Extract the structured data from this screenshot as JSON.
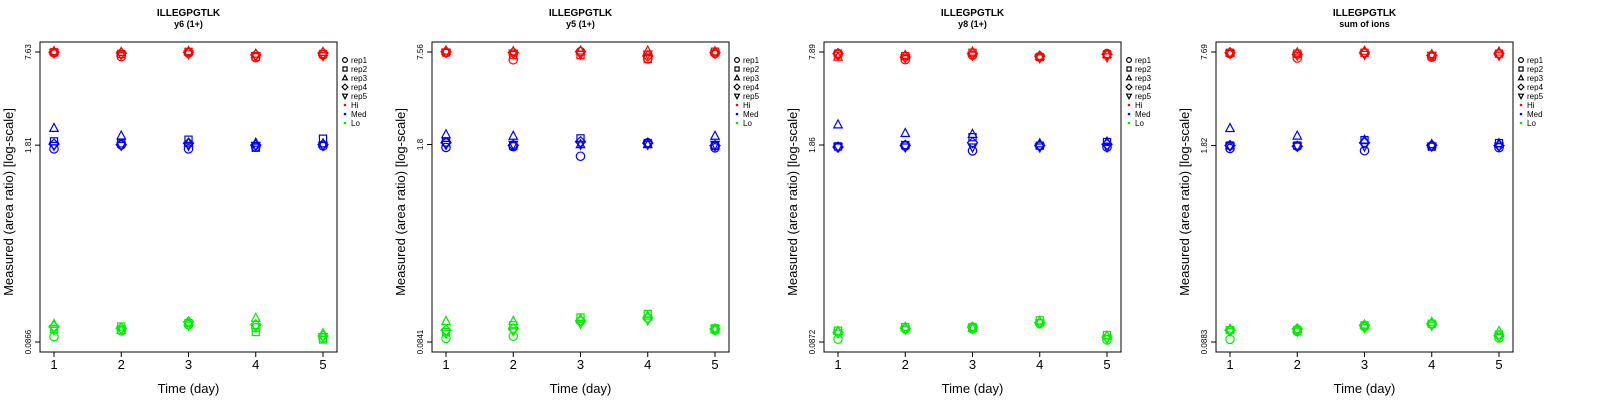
{
  "chart_data": [
    {
      "type": "scatter",
      "title": "ILLEGPGTLK",
      "subtitle": "y6 (1+)",
      "xlabel": "Time (day)",
      "ylabel": "Measured (area ratio) [log-scale]",
      "y_scale": "log",
      "ylim": [
        0.0866,
        7.63
      ],
      "yticks": [
        "0.0866",
        "1.81",
        "7.63"
      ],
      "xticks": [
        "1",
        "2",
        "3",
        "4",
        "5"
      ],
      "x": [
        1,
        2,
        3,
        4,
        5
      ],
      "series": [
        {
          "name": "Hi",
          "color": "#ff0000",
          "reps": [
            [
              7.55,
              7.1,
              7.5,
              7.0,
              7.3
            ],
            [
              7.6,
              7.4,
              7.65,
              7.1,
              7.4
            ],
            [
              7.7,
              7.6,
              7.7,
              7.4,
              7.6
            ],
            [
              7.6,
              7.5,
              7.6,
              7.3,
              7.5
            ],
            [
              7.5,
              7.3,
              7.4,
              7.2,
              7.2
            ]
          ]
        },
        {
          "name": "Med",
          "color": "#0000ff",
          "reps": [
            [
              1.71,
              1.82,
              1.71,
              1.76,
              1.79
            ],
            [
              1.92,
              1.86,
              1.97,
              1.74,
              2.0
            ],
            [
              2.35,
              2.09,
              1.87,
              1.87,
              1.85
            ],
            [
              1.84,
              1.82,
              1.86,
              1.81,
              1.83
            ],
            [
              1.8,
              1.8,
              1.8,
              1.8,
              1.8
            ]
          ]
        },
        {
          "name": "Lo",
          "color": "#00ee00",
          "reps": [
            [
              0.094,
              0.103,
              0.113,
              0.108,
              0.092
            ],
            [
              0.106,
              0.11,
              0.116,
              0.101,
              0.09
            ],
            [
              0.114,
              0.104,
              0.118,
              0.125,
              0.099
            ],
            [
              0.11,
              0.107,
              0.118,
              0.113,
              0.095
            ],
            [
              0.104,
              0.105,
              0.112,
              0.109,
              0.094
            ]
          ]
        }
      ],
      "legend": [
        "rep1",
        "rep2",
        "rep3",
        "rep4",
        "rep5",
        "Hi",
        "Med",
        "Lo"
      ],
      "legend_placement": "right"
    },
    {
      "type": "scatter",
      "title": "ILLEGPGTLK",
      "subtitle": "y5 (1+)",
      "xlabel": "Time (day)",
      "ylabel": "Measured (area ratio) [log-scale]",
      "y_scale": "log",
      "ylim": [
        0.0841,
        7.56
      ],
      "yticks": [
        "0.0841",
        "1.8",
        "7.56"
      ],
      "xticks": [
        "1",
        "2",
        "3",
        "4",
        "5"
      ],
      "x": [
        1,
        2,
        3,
        4,
        5
      ],
      "series": [
        {
          "name": "Hi",
          "color": "#ff0000",
          "reps": [
            [
              7.5,
              6.7,
              7.6,
              6.8,
              7.4
            ],
            [
              7.5,
              7.2,
              7.2,
              6.8,
              7.6
            ],
            [
              7.7,
              7.6,
              7.7,
              7.7,
              7.6
            ],
            [
              7.6,
              7.5,
              7.6,
              7.1,
              7.5
            ],
            [
              7.5,
              7.4,
              7.3,
              7.3,
              7.4
            ]
          ]
        },
        {
          "name": "Med",
          "color": "#0000ff",
          "reps": [
            [
              1.72,
              1.74,
              1.5,
              1.85,
              1.71
            ],
            [
              1.86,
              1.76,
              1.98,
              1.84,
              1.76
            ],
            [
              2.1,
              2.05,
              1.8,
              1.8,
              2.05
            ],
            [
              1.85,
              1.78,
              1.88,
              1.84,
              1.77
            ],
            [
              1.8,
              1.8,
              1.8,
              1.8,
              1.8
            ]
          ]
        },
        {
          "name": "Lo",
          "color": "#00ee00",
          "reps": [
            [
              0.089,
              0.092,
              0.116,
              0.122,
              0.101
            ],
            [
              0.098,
              0.109,
              0.123,
              0.13,
              0.104
            ],
            [
              0.116,
              0.116,
              0.12,
              0.126,
              0.102
            ],
            [
              0.101,
              0.103,
              0.117,
              0.122,
              0.103
            ],
            [
              0.096,
              0.1,
              0.112,
              0.118,
              0.103
            ]
          ]
        }
      ],
      "legend": [
        "rep1",
        "rep2",
        "rep3",
        "rep4",
        "rep5",
        "Hi",
        "Med",
        "Lo"
      ],
      "legend_placement": "right"
    },
    {
      "type": "scatter",
      "title": "ILLEGPGTLK",
      "subtitle": "y8 (1+)",
      "xlabel": "Time (day)",
      "ylabel": "Measured (area ratio) [log-scale]",
      "y_scale": "log",
      "ylim": [
        0.0872,
        7.89
      ],
      "yticks": [
        "0.0872",
        "1.86",
        "7.89"
      ],
      "xticks": [
        "1",
        "2",
        "3",
        "4",
        "5"
      ],
      "x": [
        1,
        2,
        3,
        4,
        5
      ],
      "series": [
        {
          "name": "Hi",
          "color": "#ff0000",
          "reps": [
            [
              7.6,
              7.0,
              7.5,
              7.3,
              7.7
            ],
            [
              7.7,
              7.4,
              7.8,
              7.3,
              7.6
            ],
            [
              7.3,
              7.5,
              7.9,
              7.4,
              7.6
            ],
            [
              7.7,
              7.3,
              7.7,
              7.4,
              7.6
            ],
            [
              7.5,
              7.2,
              7.5,
              7.2,
              7.3
            ]
          ]
        },
        {
          "name": "Med",
          "color": "#0000ff",
          "reps": [
            [
              1.81,
              1.83,
              1.7,
              1.84,
              1.8
            ],
            [
              1.82,
              1.86,
              2.1,
              1.84,
              1.95
            ],
            [
              2.55,
              2.23,
              2.2,
              1.9,
              1.95
            ],
            [
              1.8,
              1.85,
              1.93,
              1.85,
              1.88
            ],
            [
              1.8,
              1.8,
              1.8,
              1.8,
              1.8
            ]
          ]
        },
        {
          "name": "Lo",
          "color": "#00ee00",
          "reps": [
            [
              0.091,
              0.107,
              0.107,
              0.116,
              0.09
            ],
            [
              0.104,
              0.11,
              0.11,
              0.122,
              0.097
            ],
            [
              0.103,
              0.11,
              0.108,
              0.12,
              0.096
            ],
            [
              0.101,
              0.108,
              0.11,
              0.118,
              0.094
            ],
            [
              0.1,
              0.106,
              0.108,
              0.117,
              0.092
            ]
          ]
        }
      ],
      "legend": [
        "rep1",
        "rep2",
        "rep3",
        "rep4",
        "rep5",
        "Hi",
        "Med",
        "Lo"
      ],
      "legend_placement": "right"
    },
    {
      "type": "scatter",
      "title": "ILLEGPGTLK",
      "subtitle": "sum of ions",
      "xlabel": "Time (day)",
      "ylabel": "Measured (area ratio) [log-scale]",
      "y_scale": "log",
      "ylim": [
        0.0883,
        7.69
      ],
      "yticks": [
        "0.0883",
        "1.82",
        "7.69"
      ],
      "xticks": [
        "1",
        "2",
        "3",
        "4",
        "5"
      ],
      "x": [
        1,
        2,
        3,
        4,
        5
      ],
      "series": [
        {
          "name": "Hi",
          "color": "#ff0000",
          "reps": [
            [
              7.5,
              7.0,
              7.6,
              7.1,
              7.5
            ],
            [
              7.6,
              7.5,
              7.6,
              7.2,
              7.5
            ],
            [
              7.6,
              7.6,
              7.8,
              7.4,
              7.7
            ],
            [
              7.6,
              7.4,
              7.6,
              7.3,
              7.5
            ],
            [
              7.5,
              7.3,
              7.4,
              7.3,
              7.3
            ]
          ]
        },
        {
          "name": "Med",
          "color": "#0000ff",
          "reps": [
            [
              1.74,
              1.8,
              1.68,
              1.81,
              1.76
            ],
            [
              1.82,
              1.82,
              1.98,
              1.79,
              1.89
            ],
            [
              2.37,
              2.11,
              1.98,
              1.85,
              1.88
            ],
            [
              1.82,
              1.8,
              1.9,
              1.83,
              1.82
            ],
            [
              1.8,
              1.8,
              1.8,
              1.8,
              1.8
            ]
          ]
        },
        {
          "name": "Lo",
          "color": "#00ee00",
          "reps": [
            [
              0.092,
              0.104,
              0.112,
              0.116,
              0.094
            ],
            [
              0.106,
              0.106,
              0.114,
              0.117,
              0.099
            ],
            [
              0.108,
              0.107,
              0.115,
              0.12,
              0.104
            ],
            [
              0.106,
              0.108,
              0.114,
              0.117,
              0.097
            ],
            [
              0.104,
              0.104,
              0.11,
              0.114,
              0.096
            ]
          ]
        }
      ],
      "legend": [
        "rep1",
        "rep2",
        "rep3",
        "rep4",
        "rep5",
        "Hi",
        "Med",
        "Lo"
      ],
      "legend_placement": "right"
    }
  ]
}
